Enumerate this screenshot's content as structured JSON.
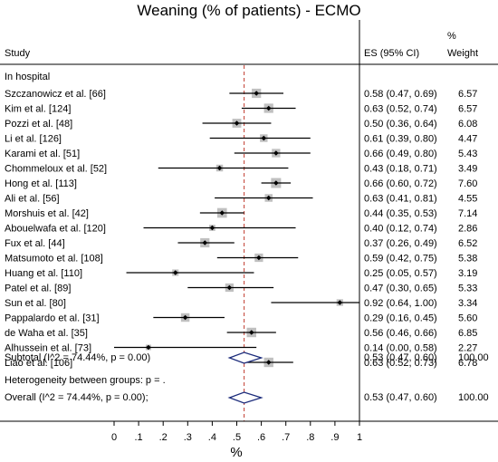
{
  "chart_data": {
    "type": "forest",
    "title": "Weaning (% of patients) - ECMO",
    "xlabel": "%",
    "columns": {
      "study": "Study",
      "es": "ES (95% CI)",
      "weight_top": "%",
      "weight_bottom": "Weight"
    },
    "xlim": [
      0,
      1
    ],
    "x_ticks": [
      {
        "value": 0,
        "label": "0"
      },
      {
        "value": 0.1,
        "label": ".1"
      },
      {
        "value": 0.2,
        "label": ".2"
      },
      {
        "value": 0.3,
        "label": ".3"
      },
      {
        "value": 0.4,
        "label": ".4"
      },
      {
        "value": 0.5,
        "label": ".5"
      },
      {
        "value": 0.6,
        "label": ".6"
      },
      {
        "value": 0.7,
        "label": ".7"
      },
      {
        "value": 0.8,
        "label": ".8"
      },
      {
        "value": 0.9,
        "label": ".9"
      },
      {
        "value": 1,
        "label": "1"
      }
    ],
    "reference_line": 0.53,
    "group_label": "In hospital",
    "studies": [
      {
        "name": "Szczanowicz et al. [66]",
        "es": 0.58,
        "lo": 0.47,
        "hi": 0.69,
        "weight": 6.57,
        "ci_text": "0.58 (0.47, 0.69)",
        "weight_text": "6.57"
      },
      {
        "name": "Kim et al. [124]",
        "es": 0.63,
        "lo": 0.52,
        "hi": 0.74,
        "weight": 6.57,
        "ci_text": "0.63 (0.52, 0.74)",
        "weight_text": "6.57"
      },
      {
        "name": "Pozzi et al. [48]",
        "es": 0.5,
        "lo": 0.36,
        "hi": 0.64,
        "weight": 6.08,
        "ci_text": "0.50 (0.36, 0.64)",
        "weight_text": "6.08"
      },
      {
        "name": "Li et al. [126]",
        "es": 0.61,
        "lo": 0.39,
        "hi": 0.8,
        "weight": 4.47,
        "ci_text": "0.61 (0.39, 0.80)",
        "weight_text": "4.47"
      },
      {
        "name": "Karami et al. [51]",
        "es": 0.66,
        "lo": 0.49,
        "hi": 0.8,
        "weight": 5.43,
        "ci_text": "0.66 (0.49, 0.80)",
        "weight_text": "5.43"
      },
      {
        "name": "Chommeloux et al. [52]",
        "es": 0.43,
        "lo": 0.18,
        "hi": 0.71,
        "weight": 3.49,
        "ci_text": "0.43 (0.18, 0.71)",
        "weight_text": "3.49"
      },
      {
        "name": "Hong et al. [113]",
        "es": 0.66,
        "lo": 0.6,
        "hi": 0.72,
        "weight": 7.6,
        "ci_text": "0.66 (0.60, 0.72)",
        "weight_text": "7.60"
      },
      {
        "name": "Ali et al. [56]",
        "es": 0.63,
        "lo": 0.41,
        "hi": 0.81,
        "weight": 4.55,
        "ci_text": "0.63 (0.41, 0.81)",
        "weight_text": "4.55"
      },
      {
        "name": "Morshuis et al. [42]",
        "es": 0.44,
        "lo": 0.35,
        "hi": 0.53,
        "weight": 7.14,
        "ci_text": "0.44 (0.35, 0.53)",
        "weight_text": "7.14"
      },
      {
        "name": "Abouelwafa et al. [120]",
        "es": 0.4,
        "lo": 0.12,
        "hi": 0.74,
        "weight": 2.86,
        "ci_text": "0.40 (0.12, 0.74)",
        "weight_text": "2.86"
      },
      {
        "name": "Fux et al. [44]",
        "es": 0.37,
        "lo": 0.26,
        "hi": 0.49,
        "weight": 6.52,
        "ci_text": "0.37 (0.26, 0.49)",
        "weight_text": "6.52"
      },
      {
        "name": "Matsumoto et al. [108]",
        "es": 0.59,
        "lo": 0.42,
        "hi": 0.75,
        "weight": 5.38,
        "ci_text": "0.59 (0.42, 0.75)",
        "weight_text": "5.38"
      },
      {
        "name": "Huang et al. [110]",
        "es": 0.25,
        "lo": 0.05,
        "hi": 0.57,
        "weight": 3.19,
        "ci_text": "0.25 (0.05, 0.57)",
        "weight_text": "3.19"
      },
      {
        "name": "Patel et al. [89]",
        "es": 0.47,
        "lo": 0.3,
        "hi": 0.65,
        "weight": 5.33,
        "ci_text": "0.47 (0.30, 0.65)",
        "weight_text": "5.33"
      },
      {
        "name": "Sun et al. [80]",
        "es": 0.92,
        "lo": 0.64,
        "hi": 1.0,
        "weight": 3.34,
        "ci_text": "0.92 (0.64, 1.00)",
        "weight_text": "3.34"
      },
      {
        "name": "Pappalardo et al. [31]",
        "es": 0.29,
        "lo": 0.16,
        "hi": 0.45,
        "weight": 5.6,
        "ci_text": "0.29 (0.16, 0.45)",
        "weight_text": "5.60"
      },
      {
        "name": "de Waha et al. [35]",
        "es": 0.56,
        "lo": 0.46,
        "hi": 0.66,
        "weight": 6.85,
        "ci_text": "0.56 (0.46, 0.66)",
        "weight_text": "6.85"
      },
      {
        "name": "Alhussein et al. [73]",
        "es": 0.14,
        "lo": 0.0,
        "hi": 0.58,
        "weight": 2.27,
        "ci_text": "0.14 (0.00, 0.58)",
        "weight_text": "2.27"
      },
      {
        "name": "Liao et al. [106]",
        "es": 0.63,
        "lo": 0.52,
        "hi": 0.73,
        "weight": 6.78,
        "ci_text": "0.63 (0.52, 0.73)",
        "weight_text": "6.78"
      }
    ],
    "subtotal": {
      "label": "Subtotal  (I^2 = 74.44%, p = 0.00)",
      "es": 0.53,
      "lo": 0.47,
      "hi": 0.6,
      "ci_text": "0.53 (0.47, 0.60)",
      "weight_text": "100.00"
    },
    "heterogeneity_label": "Heterogeneity between groups: p = .",
    "overall": {
      "label": "Overall  (I^2 = 74.44%, p = 0.00);",
      "es": 0.53,
      "lo": 0.47,
      "hi": 0.6,
      "ci_text": "0.53 (0.47, 0.60)",
      "weight_text": "100.00"
    },
    "colors": {
      "marker_box": "#c0c0c0",
      "diamond": "#1a2a7a",
      "reference_line": "#c0392b",
      "axis": "#000000"
    }
  }
}
